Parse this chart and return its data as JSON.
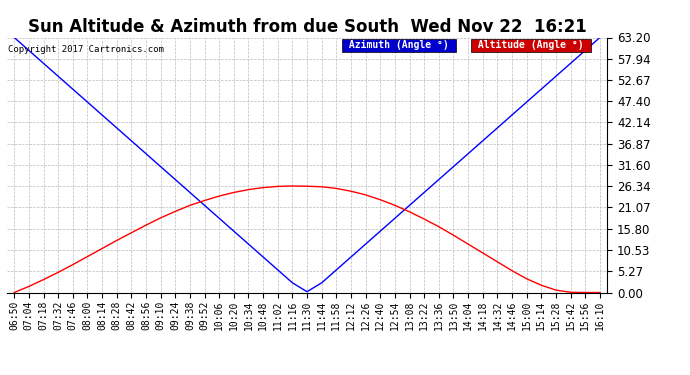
{
  "title": "Sun Altitude & Azimuth from due South  Wed Nov 22  16:21",
  "copyright": "Copyright 2017 Cartronics.com",
  "legend_azimuth": "Azimuth (Angle °)",
  "legend_altitude": "Altitude (Angle °)",
  "azimuth_color": "#0000ff",
  "altitude_color": "#ff0000",
  "legend_az_bg": "#0000cc",
  "legend_alt_bg": "#cc0000",
  "background_color": "#ffffff",
  "grid_color": "#bbbbbb",
  "title_fontsize": 12,
  "ylabel_fontsize": 8.5,
  "xlabel_fontsize": 7,
  "ylim": [
    0.0,
    63.2
  ],
  "yticks": [
    0.0,
    5.27,
    10.53,
    15.8,
    21.07,
    26.34,
    31.6,
    36.87,
    42.14,
    47.4,
    52.67,
    57.94,
    63.2
  ],
  "x_labels": [
    "06:50",
    "07:04",
    "07:18",
    "07:32",
    "07:46",
    "08:00",
    "08:14",
    "08:28",
    "08:42",
    "08:56",
    "09:10",
    "09:24",
    "09:38",
    "09:52",
    "10:06",
    "10:20",
    "10:34",
    "10:48",
    "11:02",
    "11:16",
    "11:30",
    "11:44",
    "11:58",
    "12:12",
    "12:26",
    "12:40",
    "12:54",
    "13:08",
    "13:22",
    "13:36",
    "13:50",
    "14:04",
    "14:18",
    "14:32",
    "14:46",
    "15:00",
    "15:14",
    "15:28",
    "15:42",
    "15:56",
    "16:10"
  ],
  "azimuth_values": [
    63.2,
    60.0,
    56.8,
    53.6,
    50.4,
    47.2,
    44.0,
    40.8,
    37.6,
    34.4,
    31.2,
    28.0,
    24.8,
    21.6,
    18.4,
    15.2,
    12.0,
    8.8,
    5.6,
    2.4,
    0.2,
    2.4,
    5.6,
    8.8,
    12.0,
    15.2,
    18.4,
    21.6,
    24.8,
    28.0,
    31.2,
    34.4,
    37.6,
    40.8,
    44.0,
    47.2,
    50.4,
    53.6,
    56.8,
    60.0,
    63.2
  ],
  "altitude_values": [
    0.0,
    1.5,
    3.2,
    5.0,
    6.9,
    8.9,
    10.9,
    12.9,
    14.8,
    16.7,
    18.5,
    20.1,
    21.6,
    22.8,
    23.9,
    24.8,
    25.5,
    26.0,
    26.3,
    26.4,
    26.34,
    26.2,
    25.8,
    25.1,
    24.2,
    23.0,
    21.6,
    20.0,
    18.2,
    16.3,
    14.2,
    12.0,
    9.8,
    7.6,
    5.4,
    3.4,
    1.8,
    0.6,
    0.05,
    0.0,
    0.0
  ]
}
